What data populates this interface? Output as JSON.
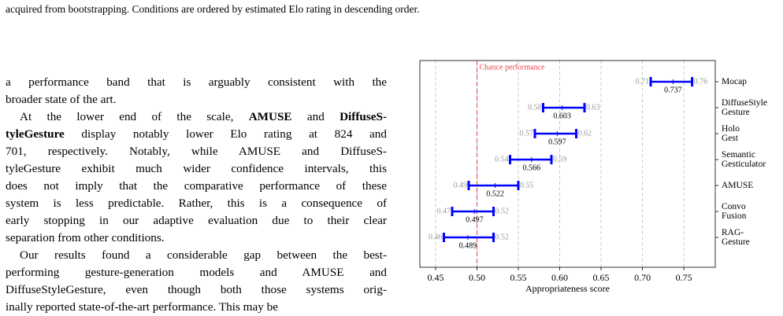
{
  "caption": "acquired from bootstrapping. Conditions are ordered by estimated Elo rating in descending order.",
  "paragraphs": [
    [
      [
        {
          "text": "a performance band that is arguably consistent with the"
        }
      ],
      [
        {
          "text": "broader state of the art."
        }
      ]
    ],
    [
      [
        {
          "text": "At the lower end of the scale, "
        },
        {
          "text": "AMUSE",
          "bold": true
        },
        {
          "text": " and "
        },
        {
          "text": "DiffuseS-",
          "bold": true
        }
      ],
      [
        {
          "text": "tyleGesture",
          "bold": true
        },
        {
          "text": " display notably lower Elo rating at 824 and"
        }
      ],
      [
        {
          "text": "701, respectively. Notably, while AMUSE and DiffuseS-"
        }
      ],
      [
        {
          "text": "tyleGesture exhibit much wider confidence intervals, this"
        }
      ],
      [
        {
          "text": "does not imply that the comparative performance of these"
        }
      ],
      [
        {
          "text": "system is less predictable. Rather, this is a consequence of"
        }
      ],
      [
        {
          "text": "early stopping in our adaptive evaluation due to their clear"
        }
      ],
      [
        {
          "text": "separation from other conditions."
        }
      ]
    ],
    [
      [
        {
          "text": "Our results found a considerable gap between the best-"
        }
      ],
      [
        {
          "text": "performing gesture-generation models and AMUSE and"
        }
      ],
      [
        {
          "text": "DiffuseStyleGesture, even though both those systems orig-"
        }
      ],
      [
        {
          "text": "inally reported state-of-the-art performance. This may be"
        }
      ]
    ]
  ],
  "chart_data": {
    "type": "interval",
    "categories": [
      "Mocap",
      "DiffuseStyle\nGesture",
      "Holo\nGest",
      "Semantic\nGesticulator",
      "AMUSE",
      "Convo\nFusion",
      "RAG-\nGesture"
    ],
    "lower": [
      0.71,
      0.58,
      0.57,
      0.54,
      0.49,
      0.47,
      0.46
    ],
    "upper": [
      0.76,
      0.63,
      0.62,
      0.59,
      0.55,
      0.52,
      0.52
    ],
    "mean": [
      0.737,
      0.603,
      0.597,
      0.566,
      0.522,
      0.497,
      0.489
    ],
    "color": "#0000ff",
    "xlabel": "Appropriateness score",
    "xlim": [
      0.431,
      0.788
    ],
    "xticks": [
      0.45,
      {
        "value": 0.5,
        "label": "0.50"
      },
      0.55,
      {
        "value": 0.6,
        "label": "0.60"
      },
      0.65,
      {
        "value": 0.7,
        "label": "0.70"
      },
      0.75
    ],
    "grid": true,
    "reference_line": {
      "value": 0.5,
      "label": "Chance performance",
      "color": "#e8474c"
    }
  }
}
